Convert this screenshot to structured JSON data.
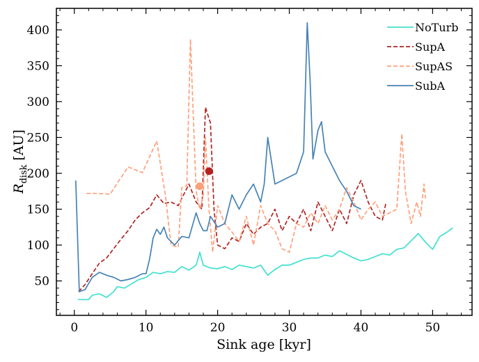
{
  "chart_data": {
    "type": "line",
    "xlabel": "Sink age [kyr]",
    "ylabel_main": "R",
    "ylabel_sub": "disk",
    "ylabel_unit": " [AU]",
    "xlim": [
      -2.5,
      55.5
    ],
    "ylim": [
      2,
      430
    ],
    "xticks": [
      0,
      10,
      20,
      30,
      40,
      50
    ],
    "yticks": [
      50,
      100,
      150,
      200,
      250,
      300,
      350,
      400
    ],
    "legend_position": "top-right",
    "series": [
      {
        "name": "NoTurb",
        "color": "#40e0d0",
        "style": "solid",
        "x": [
          0.5,
          2.0,
          2.5,
          3.5,
          4.5,
          5.5,
          6.0,
          7.0,
          8.0,
          9.0,
          10.0,
          11.0,
          12.0,
          13.0,
          14.0,
          15.0,
          16.0,
          17.0,
          17.5,
          18.0,
          19.0,
          20.0,
          21.0,
          22.0,
          23.0,
          24.0,
          25.0,
          26.0,
          27.0,
          28.0,
          29.0,
          30.0,
          31.0,
          32.0,
          33.0,
          34.0,
          35.0,
          36.0,
          37.0,
          38.0,
          39.0,
          40.0,
          41.0,
          42.0,
          43.0,
          44.0,
          45.0,
          46.0,
          47.0,
          48.0,
          49.0,
          50.0,
          51.0,
          52.0,
          52.8
        ],
        "values": [
          24,
          24,
          30,
          32,
          27,
          35,
          42,
          40,
          46,
          52,
          55,
          62,
          60,
          63,
          62,
          70,
          65,
          72,
          90,
          72,
          68,
          67,
          70,
          66,
          72,
          70,
          68,
          72,
          58,
          66,
          72,
          72,
          76,
          80,
          82,
          82,
          86,
          84,
          92,
          87,
          82,
          78,
          80,
          84,
          88,
          86,
          94,
          96,
          106,
          116,
          104,
          94,
          112,
          118,
          124
        ]
      },
      {
        "name": "SupA",
        "color": "#b22222",
        "style": "dashed",
        "x": [
          0.6,
          1.5,
          2.5,
          3.5,
          4.5,
          5.5,
          6.5,
          7.5,
          8.5,
          9.5,
          10.5,
          11.5,
          12.5,
          13.5,
          14.5,
          15.0,
          16.0,
          17.0,
          17.8,
          18.3,
          19.0,
          19.5,
          20.0,
          21.0,
          22.0,
          23.0,
          24.0,
          25.0,
          26.0,
          27.0,
          28.0,
          29.0,
          30.0,
          31.0,
          32.0,
          33.0,
          34.0,
          35.0,
          36.0,
          37.0,
          38.0,
          39.0,
          40.0,
          41.0,
          42.0,
          43.0,
          43.5
        ],
        "values": [
          35,
          45,
          60,
          75,
          82,
          95,
          108,
          120,
          135,
          145,
          152,
          170,
          158,
          160,
          155,
          165,
          185,
          160,
          150,
          292,
          270,
          150,
          100,
          95,
          110,
          105,
          130,
          115,
          125,
          130,
          150,
          120,
          140,
          130,
          150,
          120,
          160,
          140,
          120,
          150,
          130,
          170,
          190,
          160,
          140,
          135,
          160
        ]
      },
      {
        "name": "SupAS",
        "color": "#ffa07a",
        "style": "dashed",
        "x": [
          1.7,
          3.0,
          5.0,
          7.5,
          9.5,
          11.5,
          12.7,
          13.5,
          14.5,
          15.0,
          15.7,
          16.2,
          17.0,
          17.5,
          18.0,
          18.3,
          18.8,
          19.3,
          20.0,
          21.0,
          22.0,
          23.0,
          24.0,
          25.0,
          26.0,
          27.0,
          28.0,
          29.0,
          30.0,
          31.0,
          32.0,
          33.0,
          34.0,
          35.0,
          36.0,
          37.0,
          38.0,
          39.0,
          40.0,
          41.0,
          42.0,
          43.0,
          44.0,
          45.0,
          45.7,
          46.2,
          47.0,
          47.8,
          48.3,
          48.8,
          49.0
        ],
        "values": [
          172,
          172,
          171,
          209,
          201,
          245,
          170,
          100,
          97,
          180,
          183,
          387,
          175,
          150,
          170,
          250,
          150,
          90,
          155,
          130,
          118,
          105,
          140,
          100,
          155,
          130,
          120,
          95,
          90,
          130,
          125,
          145,
          130,
          155,
          135,
          150,
          180,
          160,
          135,
          150,
          160,
          140,
          145,
          150,
          255,
          175,
          130,
          160,
          140,
          185,
          165
        ]
      },
      {
        "name": "SubA",
        "color": "#4682b4",
        "style": "solid",
        "x": [
          0.2,
          0.7,
          1.5,
          2.5,
          3.5,
          4.5,
          5.5,
          6.5,
          7.5,
          8.5,
          9.5,
          10.0,
          10.5,
          11.0,
          11.5,
          12.0,
          12.5,
          13.0,
          14.0,
          15.0,
          16.0,
          17.0,
          17.5,
          18.0,
          18.5,
          19.0,
          20.0,
          21.0,
          22.0,
          23.0,
          24.0,
          25.0,
          26.0,
          26.5,
          27.0,
          28.0,
          29.0,
          30.0,
          31.0,
          32.0,
          32.5,
          32.9,
          33.3,
          34.0,
          34.5,
          35.0,
          36.0,
          37.0,
          38.0,
          39.0,
          40.0
        ],
        "values": [
          190,
          35,
          38,
          55,
          62,
          58,
          55,
          50,
          52,
          55,
          60,
          60,
          80,
          110,
          122,
          115,
          125,
          110,
          100,
          112,
          110,
          145,
          130,
          120,
          120,
          140,
          125,
          130,
          170,
          150,
          170,
          185,
          160,
          185,
          250,
          185,
          190,
          195,
          200,
          230,
          410,
          330,
          220,
          260,
          272,
          230,
          210,
          190,
          175,
          155,
          150
        ]
      }
    ],
    "markers": [
      {
        "series": "SupAS",
        "x": 17.5,
        "y": 182,
        "color": "#ffa07a"
      },
      {
        "series": "SupA",
        "x": 18.8,
        "y": 203,
        "color": "#b22222"
      }
    ]
  }
}
